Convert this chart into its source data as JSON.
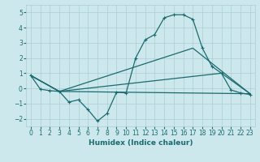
{
  "xlabel": "Humidex (Indice chaleur)",
  "background_color": "#cce8ec",
  "grid_color": "#aacdd4",
  "line_color": "#1a6b6e",
  "xlim": [
    -0.5,
    23.5
  ],
  "ylim": [
    -2.5,
    5.5
  ],
  "xticks": [
    0,
    1,
    2,
    3,
    4,
    5,
    6,
    7,
    8,
    9,
    10,
    11,
    12,
    13,
    14,
    15,
    16,
    17,
    18,
    19,
    20,
    21,
    22,
    23
  ],
  "yticks": [
    -2,
    -1,
    0,
    1,
    2,
    3,
    4,
    5
  ],
  "line1_x": [
    0,
    1,
    2,
    3,
    4,
    5,
    6,
    7,
    8,
    9,
    10,
    11,
    12,
    13,
    14,
    15,
    16,
    17,
    18,
    19,
    20,
    21,
    22,
    23
  ],
  "line1_y": [
    0.85,
    -0.05,
    -0.15,
    -0.2,
    -0.9,
    -0.75,
    -1.4,
    -2.15,
    -1.65,
    -0.25,
    -0.3,
    2.0,
    3.2,
    3.55,
    4.65,
    4.85,
    4.85,
    4.55,
    2.65,
    1.45,
    1.0,
    -0.1,
    -0.3,
    -0.4
  ],
  "line2_x": [
    0,
    3,
    23
  ],
  "line2_y": [
    0.85,
    -0.2,
    -0.35
  ],
  "line3_x": [
    0,
    3,
    17,
    23
  ],
  "line3_y": [
    0.85,
    -0.2,
    2.65,
    -0.35
  ],
  "line4_x": [
    0,
    3,
    20,
    23
  ],
  "line4_y": [
    0.85,
    -0.2,
    1.0,
    -0.35
  ],
  "xlabel_fontsize": 6.5,
  "tick_fontsize": 5.5,
  "linewidth": 0.9,
  "markersize": 2.5
}
